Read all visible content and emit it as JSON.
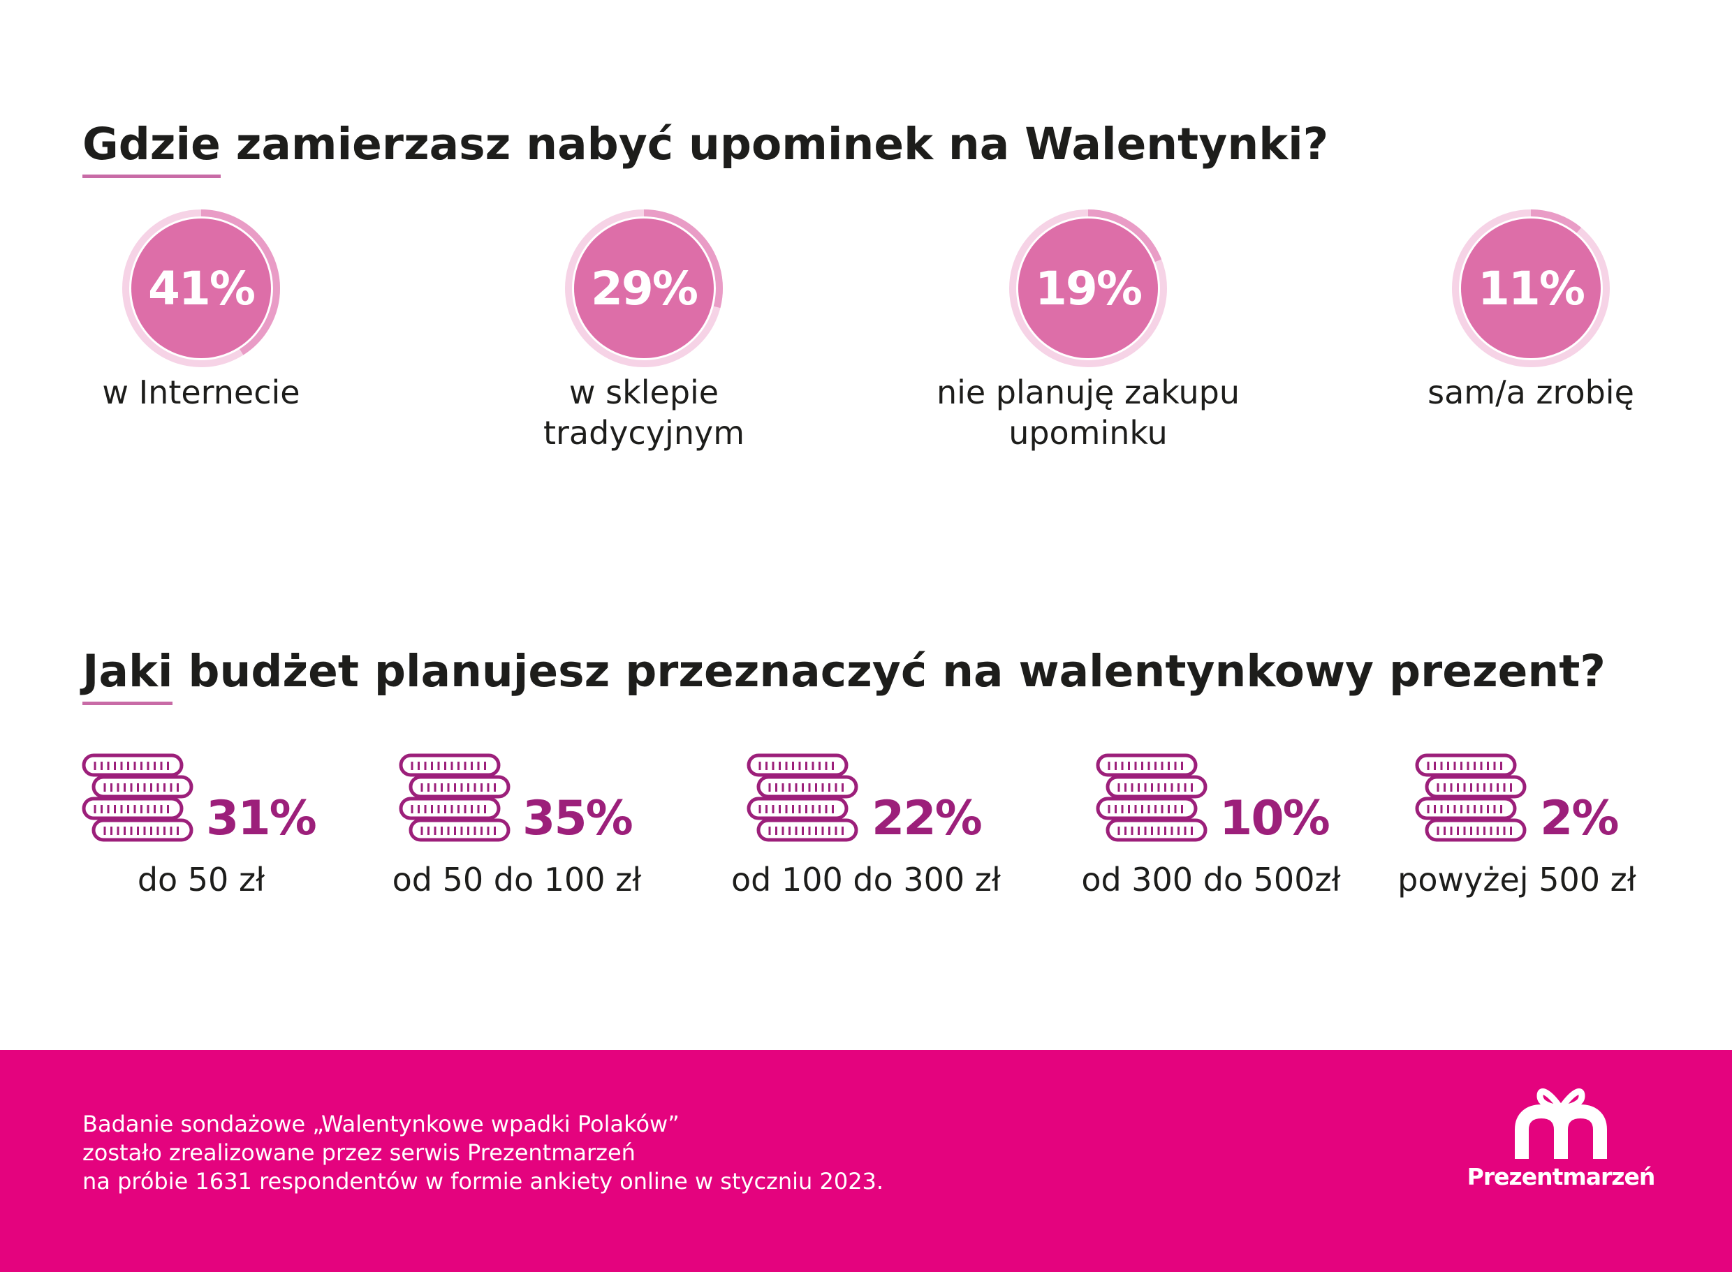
{
  "q1": {
    "title_first": "Gdzie",
    "title_rest": " zamierzasz nabyć upominek na Walentynki?"
  },
  "q2": {
    "title_first": "Jaki",
    "title_rest": " budżet planujesz przeznaczyć na walentynkowy prezent?"
  },
  "colors": {
    "donut_fill": "#dd6ea8",
    "donut_ring": "#f6d3e6",
    "donut_arc": "#e99cc6",
    "budget_accent": "#9c1f7a",
    "footer_bg": "#e4037e"
  },
  "chart_data": [
    {
      "type": "pie",
      "categories": [
        "w Internecie",
        "w sklepie tradycyjnym",
        "nie planuję zakupu upominku",
        "sam/a zrobię"
      ],
      "labels_lines": [
        [
          "w Internecie"
        ],
        [
          "w sklepie",
          "tradycyjnym"
        ],
        [
          "nie planuję zakupu",
          "upominku"
        ],
        [
          "sam/a zrobię"
        ]
      ],
      "values": [
        41,
        29,
        19,
        11
      ],
      "value_labels": [
        "41%",
        "29%",
        "19%",
        "11%"
      ],
      "unit": "%"
    },
    {
      "type": "bar",
      "icon": "coin-stack-icon",
      "categories": [
        "do 50 zł",
        "od 50 do 100 zł",
        "od 100 do 300 zł",
        "od 300 do 500zł",
        "powyżej 500 zł"
      ],
      "values": [
        31,
        35,
        22,
        10,
        2
      ],
      "value_labels": [
        "31%",
        "35%",
        "22%",
        "10%",
        "2%"
      ],
      "unit": "%"
    }
  ],
  "footer": {
    "lines": [
      "Badanie sondażowe „Walentynkowe wpadki Polaków”",
      "zostało zrealizowane przez serwis Prezentmarzeń",
      "na próbie 1631 respondentów w formie ankiety online w styczniu 2023."
    ],
    "logo_text": "Prezentmarzeń"
  }
}
